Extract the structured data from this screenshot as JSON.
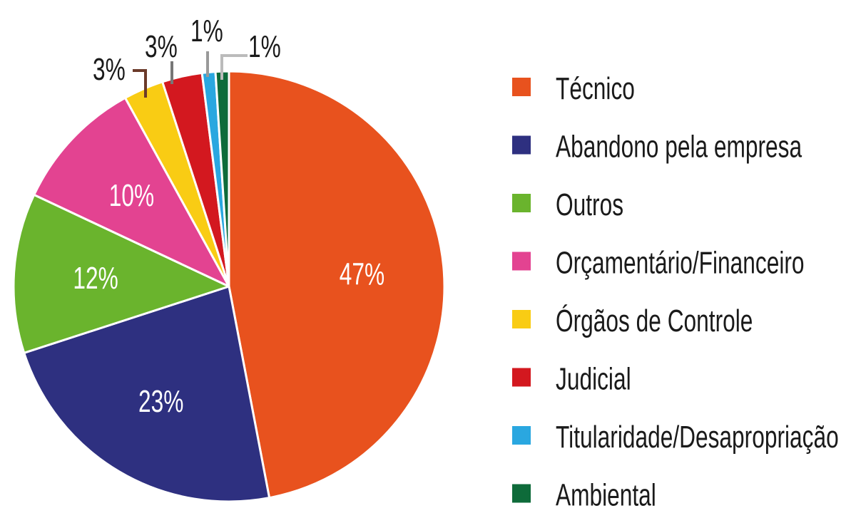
{
  "chart_data": {
    "type": "pie",
    "title": "",
    "start": "top, clockwise",
    "legend_position": "right",
    "categories": [
      "Técnico",
      "Abandono pela empresa",
      "Outros",
      "Orçamentário/Financeiro",
      "Órgãos de Controle",
      "Judicial",
      "Titularidade/Desapropriação",
      "Ambiental"
    ],
    "values": [
      47,
      23,
      12,
      10,
      3,
      3,
      1,
      1
    ],
    "labels": [
      "47%",
      "23%",
      "12%",
      "10%",
      "3%",
      "3%",
      "1%",
      "1%"
    ],
    "colors": [
      "#E8521E",
      "#2E3080",
      "#6AB42D",
      "#E34391",
      "#F9CC14",
      "#D3181F",
      "#2AA7E0",
      "#0E6B3A"
    ]
  }
}
